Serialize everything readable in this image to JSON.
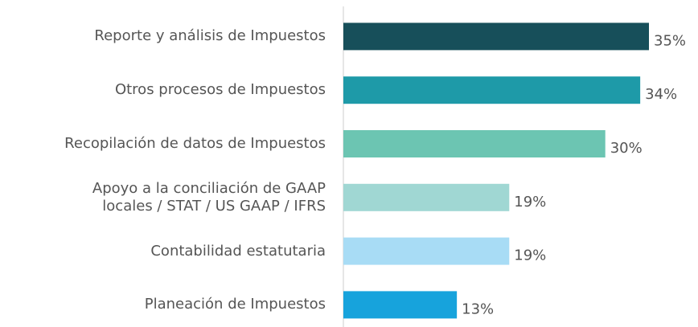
{
  "chart_data": {
    "type": "bar",
    "orientation": "horizontal",
    "categories": [
      "Reporte y análisis de Impuestos",
      "Otros procesos de Impuestos",
      "Recopilación de datos de Impuestos",
      "Apoyo a la conciliación de GAAP \nlocales / STAT / US GAAP / IFRS",
      "Contabilidad estatutaria",
      "Planeación de Impuestos"
    ],
    "values": [
      35,
      34,
      30,
      19,
      19,
      13
    ],
    "value_labels": [
      "35%",
      "34%",
      "30%",
      "19%",
      "19%",
      "13%"
    ],
    "colors": [
      "#174f5a",
      "#1e9aa8",
      "#6cc5b2",
      "#a0d7d3",
      "#a8dcf5",
      "#17a3dc"
    ],
    "xlim": [
      0,
      35
    ]
  }
}
